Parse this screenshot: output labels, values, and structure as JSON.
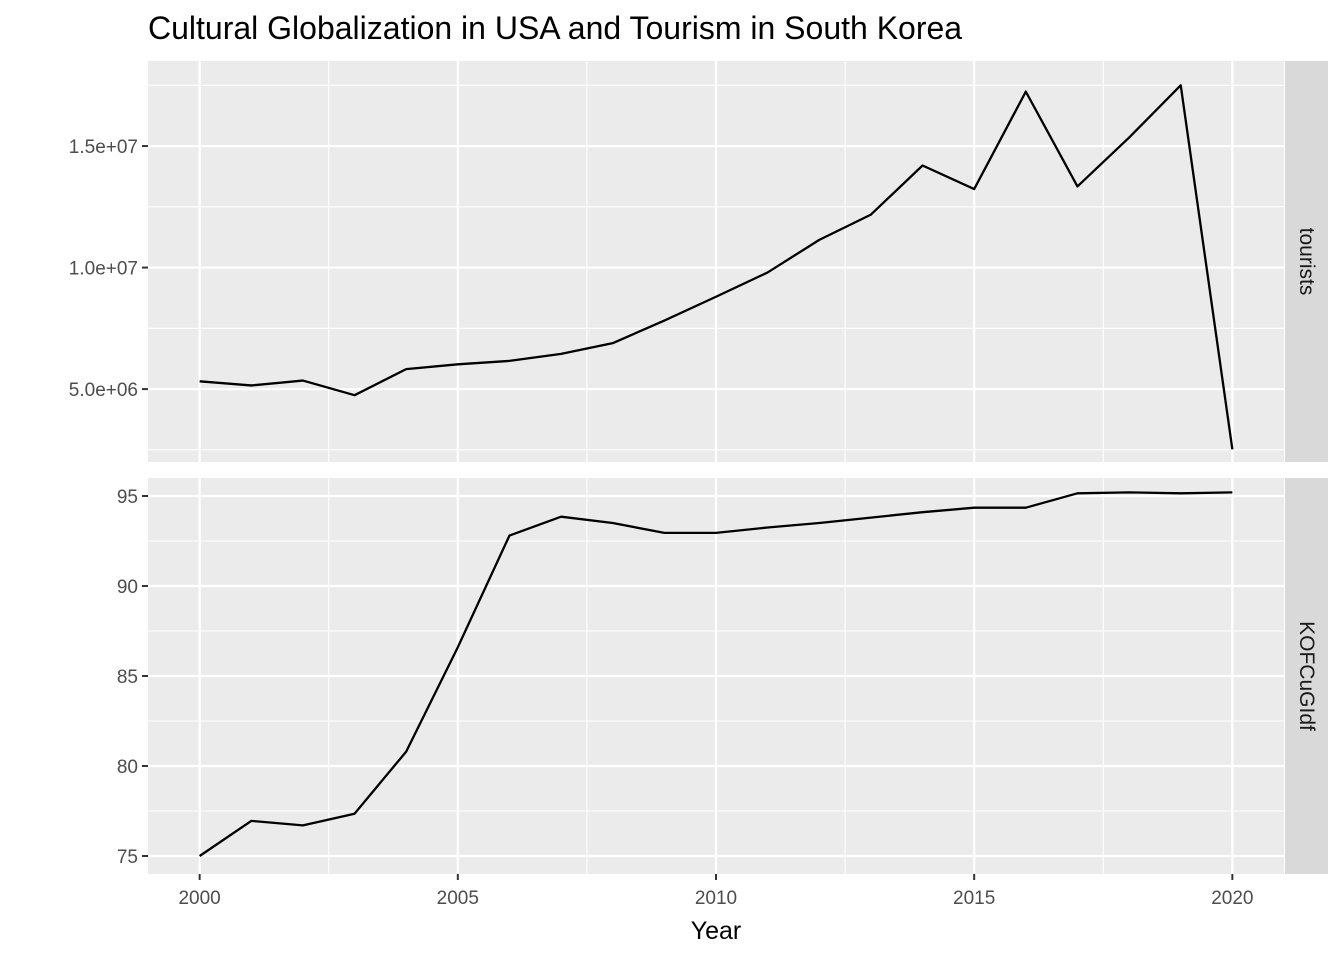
{
  "chart_data": {
    "type": "line",
    "title": "Cultural Globalization in USA and Tourism in South Korea",
    "xlabel": "Year",
    "x": [
      2000,
      2001,
      2002,
      2003,
      2004,
      2005,
      2006,
      2007,
      2008,
      2009,
      2010,
      2011,
      2012,
      2013,
      2014,
      2015,
      2016,
      2017,
      2018,
      2019,
      2020
    ],
    "xlim": [
      1999,
      2021
    ],
    "x_ticks": [
      "2000",
      "2005",
      "2010",
      "2015",
      "2020"
    ],
    "grid": true,
    "facets": [
      {
        "strip_label": "tourists",
        "ylim": [
          2000000,
          18500000
        ],
        "y_ticks": [
          "5.0e+06",
          "1.0e+07",
          "1.5e+07"
        ],
        "y_tick_values": [
          5000000,
          10000000,
          15000000
        ],
        "y_minor_values": [
          2500000,
          7500000,
          12500000,
          17500000
        ],
        "values": [
          5320000,
          5150000,
          5350000,
          4750000,
          5820000,
          6020000,
          6160000,
          6450000,
          6890000,
          7820000,
          8800000,
          9800000,
          11140000,
          12180000,
          14200000,
          13230000,
          17240000,
          13340000,
          15350000,
          17500000,
          2520000
        ]
      },
      {
        "strip_label": "KOFCuGIdf",
        "ylim": [
          74,
          96
        ],
        "y_ticks": [
          "75",
          "80",
          "85",
          "90",
          "95"
        ],
        "y_tick_values": [
          75,
          80,
          85,
          90,
          95
        ],
        "y_minor_values": [
          77.5,
          82.5,
          87.5,
          92.5
        ],
        "values": [
          75.0,
          76.95,
          76.7,
          77.35,
          80.8,
          86.6,
          92.8,
          93.85,
          93.5,
          92.95,
          92.95,
          93.25,
          93.5,
          93.8,
          94.1,
          94.35,
          94.35,
          95.15,
          95.2,
          95.15,
          95.2
        ]
      }
    ]
  }
}
